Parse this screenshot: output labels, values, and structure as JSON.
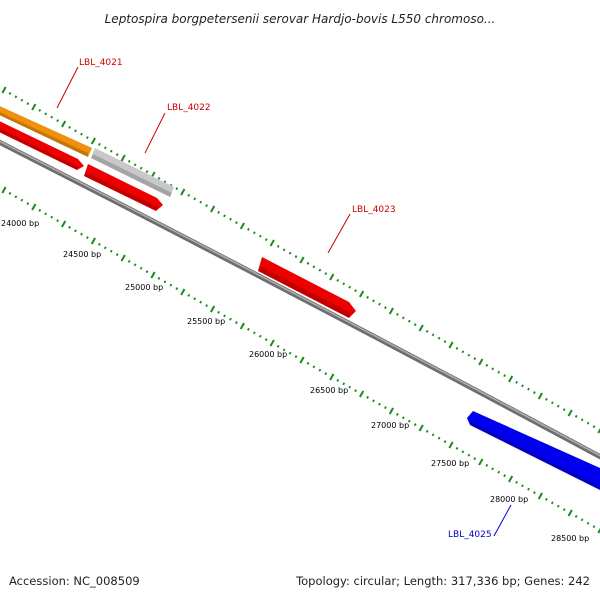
{
  "title": "Leptospira borgpetersenii serovar Hardjo-bovis L550 chromoso...",
  "footer": {
    "accession": "Accession: NC_008509",
    "summary": "Topology: circular; Length: 317,336 bp; Genes: 242"
  },
  "colors": {
    "backbone": "#7a7a7a",
    "tick": "#1a8a1a",
    "forward_label": "#cc0000",
    "reverse_label": "#0000cc"
  },
  "bp_labels": [
    "24000 bp",
    "24500 bp",
    "25000 bp",
    "25500 bp",
    "26000 bp",
    "26500 bp",
    "27000 bp",
    "27500 bp",
    "28000 bp",
    "28500 bp"
  ],
  "genes": [
    {
      "label": "LBL_4021",
      "color": "#f0900c",
      "strand": "forward"
    },
    {
      "label": "LBL_4022",
      "color": "#c8c8c8",
      "strand": "forward"
    },
    {
      "label": "",
      "color": "#ee0000",
      "strand": "forward"
    },
    {
      "label": "",
      "color": "#ee0000",
      "strand": "forward"
    },
    {
      "label": "LBL_4023",
      "color": "#ee0000",
      "strand": "forward"
    },
    {
      "label": "LBL_4025",
      "color": "#0000ee",
      "strand": "reverse"
    }
  ]
}
